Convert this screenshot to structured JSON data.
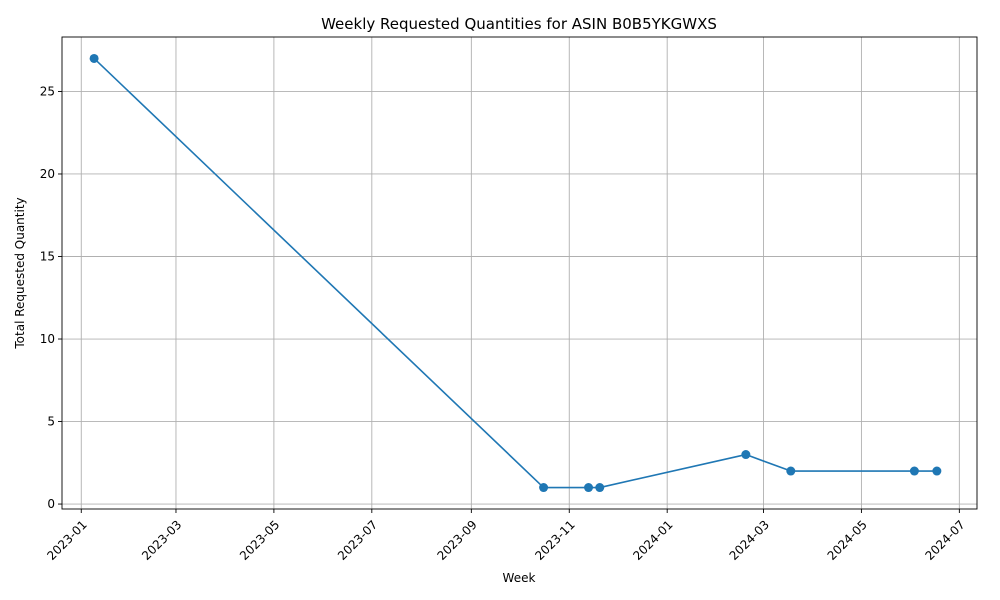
{
  "chart_data": {
    "type": "line",
    "title": "Weekly Requested Quantities for ASIN B0B5YKGWXS",
    "xlabel": "Week",
    "ylabel": "Total Requested Quantity",
    "x_ticks": [
      "2023-01",
      "2023-03",
      "2023-05",
      "2023-07",
      "2023-09",
      "2023-11",
      "2024-01",
      "2024-03",
      "2024-05",
      "2024-07"
    ],
    "y_ticks": [
      0,
      5,
      10,
      15,
      20,
      25
    ],
    "xlim": [
      "2022-12-20",
      "2024-07-12"
    ],
    "ylim": [
      -0.3,
      28.3
    ],
    "grid": true,
    "series": [
      {
        "color": "#1f77b4",
        "marker": "circle",
        "points": [
          {
            "x": "2023-01-09",
            "y": 27
          },
          {
            "x": "2023-10-16",
            "y": 1
          },
          {
            "x": "2023-11-13",
            "y": 1
          },
          {
            "x": "2023-11-20",
            "y": 1
          },
          {
            "x": "2024-02-19",
            "y": 3
          },
          {
            "x": "2024-03-18",
            "y": 2
          },
          {
            "x": "2024-06-03",
            "y": 2
          },
          {
            "x": "2024-06-17",
            "y": 2
          }
        ]
      }
    ]
  }
}
